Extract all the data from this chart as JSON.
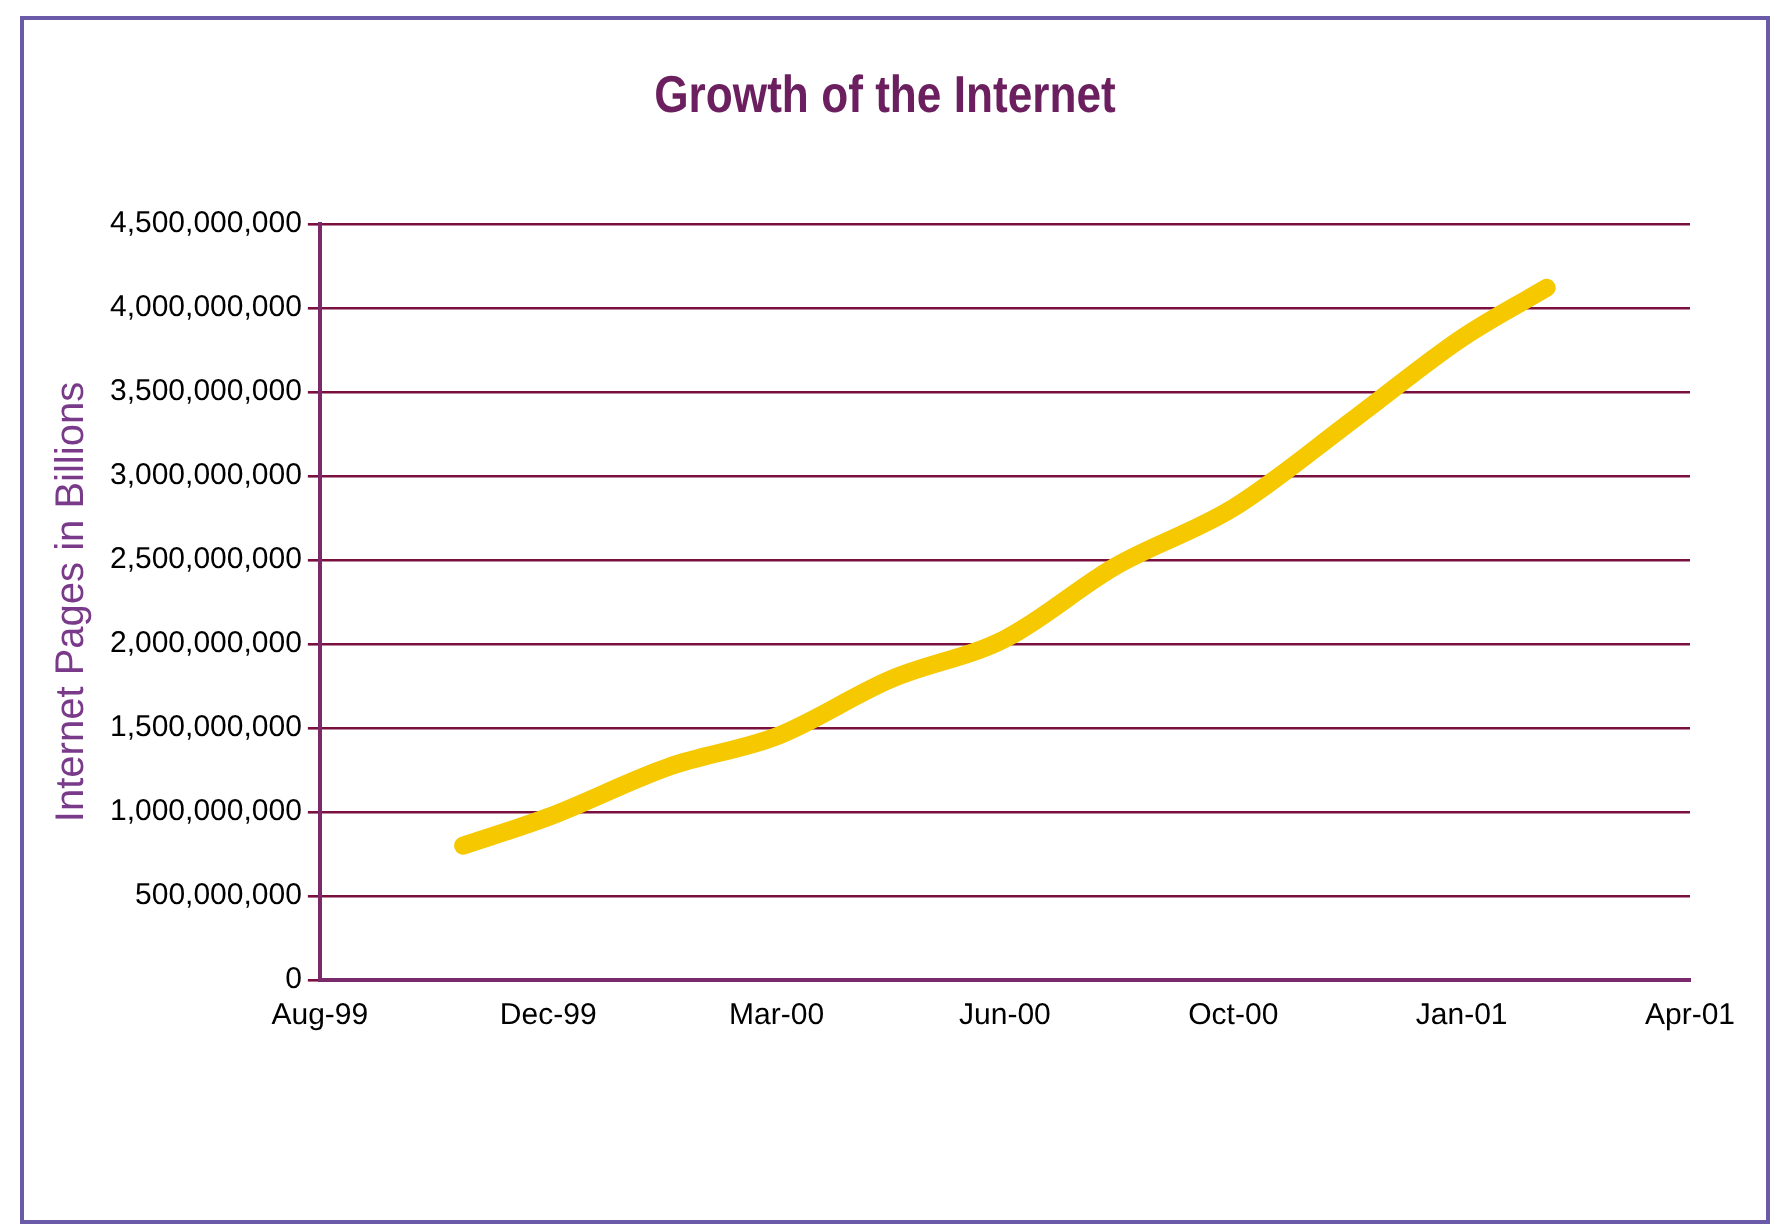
{
  "chart_data": {
    "type": "line",
    "title": "Growth of the Internet",
    "ylabel": "Internet Pages in Billions",
    "x": [
      "1999-10-28",
      "1999-12-05",
      "2000-01-28",
      "2000-03-16",
      "2000-05-06",
      "2000-06-26",
      "2000-08-14",
      "2000-10-06",
      "2000-11-30",
      "2001-01-16",
      "2001-02-23"
    ],
    "series": [
      {
        "color": "#f5c800",
        "values": [
          800000000,
          970000000,
          1270000000,
          1450000000,
          1790000000,
          2030000000,
          2460000000,
          2810000000,
          3350000000,
          3820000000,
          4120000000
        ]
      }
    ],
    "xlim": [
      "1999-08-25",
      "2001-04-28"
    ],
    "xticks": [
      {
        "value": "1999-08-25",
        "label": "Aug-99"
      },
      {
        "value": "1999-12-05",
        "label": "Dec-99"
      },
      {
        "value": "2000-03-16",
        "label": "Mar-00"
      },
      {
        "value": "2000-06-26",
        "label": "Jun-00"
      },
      {
        "value": "2000-10-06",
        "label": "Oct-00"
      },
      {
        "value": "2001-01-16",
        "label": "Jan-01"
      },
      {
        "value": "2001-04-28",
        "label": "Apr-01"
      }
    ],
    "ylim": [
      0,
      4500000000
    ],
    "yticks": [
      {
        "value": 0,
        "label": "0"
      },
      {
        "value": 500000000,
        "label": "500,000,000"
      },
      {
        "value": 1000000000,
        "label": "1,000,000,000"
      },
      {
        "value": 1500000000,
        "label": "1,500,000,000"
      },
      {
        "value": 2000000000,
        "label": "2,000,000,000"
      },
      {
        "value": 2500000000,
        "label": "2,500,000,000"
      },
      {
        "value": 3000000000,
        "label": "3,000,000,000"
      },
      {
        "value": 3500000000,
        "label": "3,500,000,000"
      },
      {
        "value": 4000000000,
        "label": "4,000,000,000"
      },
      {
        "value": 4500000000,
        "label": "4,500,000,000"
      }
    ],
    "grid": "y",
    "legend": false,
    "marker": "none",
    "line_style": "solid"
  }
}
